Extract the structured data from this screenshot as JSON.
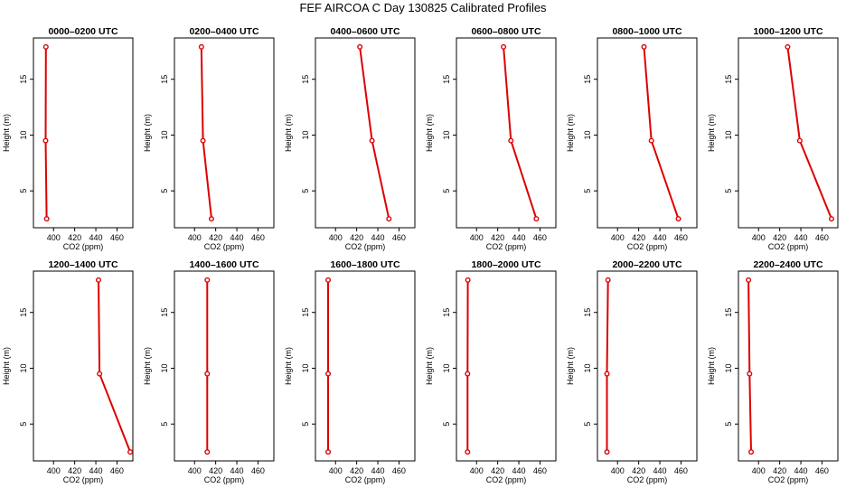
{
  "page": {
    "title": "FEF  AIRCOA C  Day 130825  Calibrated Profiles"
  },
  "chart_data": [
    {
      "type": "line",
      "title": "0000–0200 UTC",
      "xlabel": "CO2 (ppm)",
      "ylabel": "Height (m)",
      "xlim": [
        381,
        475
      ],
      "ylim": [
        1.7,
        18.7
      ],
      "x_ticks": [
        400,
        420,
        440,
        460
      ],
      "y_ticks": [
        5,
        10,
        15
      ],
      "heights": [
        2.5,
        9.5,
        17.9
      ],
      "co2": [
        393.5,
        392.5,
        392.8
      ]
    },
    {
      "type": "line",
      "title": "0200–0400 UTC",
      "xlabel": "CO2 (ppm)",
      "ylabel": "Height (m)",
      "xlim": [
        381,
        475
      ],
      "ylim": [
        1.7,
        18.7
      ],
      "x_ticks": [
        400,
        420,
        440,
        460
      ],
      "y_ticks": [
        5,
        10,
        15
      ],
      "heights": [
        2.5,
        9.5,
        17.9
      ],
      "co2": [
        416.0,
        408.0,
        406.5
      ]
    },
    {
      "type": "line",
      "title": "0400–0600 UTC",
      "xlabel": "CO2 (ppm)",
      "ylabel": "Height (m)",
      "xlim": [
        381,
        475
      ],
      "ylim": [
        1.7,
        18.7
      ],
      "x_ticks": [
        400,
        420,
        440,
        460
      ],
      "y_ticks": [
        5,
        10,
        15
      ],
      "heights": [
        2.5,
        9.5,
        17.9
      ],
      "co2": [
        450.5,
        434.5,
        423.0
      ]
    },
    {
      "type": "line",
      "title": "0600–0800 UTC",
      "xlabel": "CO2 (ppm)",
      "ylabel": "Height (m)",
      "xlim": [
        381,
        475
      ],
      "ylim": [
        1.7,
        18.7
      ],
      "x_ticks": [
        400,
        420,
        440,
        460
      ],
      "y_ticks": [
        5,
        10,
        15
      ],
      "heights": [
        2.5,
        9.5,
        17.9
      ],
      "co2": [
        456.5,
        432.5,
        425.5
      ]
    },
    {
      "type": "line",
      "title": "0800–1000 UTC",
      "xlabel": "CO2 (ppm)",
      "ylabel": "Height (m)",
      "xlim": [
        381,
        475
      ],
      "ylim": [
        1.7,
        18.7
      ],
      "x_ticks": [
        400,
        420,
        440,
        460
      ],
      "y_ticks": [
        5,
        10,
        15
      ],
      "heights": [
        2.5,
        9.5,
        17.9
      ],
      "co2": [
        457.5,
        432.0,
        425.0
      ]
    },
    {
      "type": "line",
      "title": "1000–1200 UTC",
      "xlabel": "CO2 (ppm)",
      "ylabel": "Height (m)",
      "xlim": [
        381,
        475
      ],
      "ylim": [
        1.7,
        18.7
      ],
      "x_ticks": [
        400,
        420,
        440,
        460
      ],
      "y_ticks": [
        5,
        10,
        15
      ],
      "heights": [
        2.5,
        9.5,
        17.9
      ],
      "co2": [
        469.0,
        439.0,
        427.5
      ]
    },
    {
      "type": "line",
      "title": "1200–1400 UTC",
      "xlabel": "CO2 (ppm)",
      "ylabel": "Height (m)",
      "xlim": [
        381,
        475
      ],
      "ylim": [
        1.7,
        18.7
      ],
      "x_ticks": [
        400,
        420,
        440,
        460
      ],
      "y_ticks": [
        5,
        10,
        15
      ],
      "heights": [
        2.5,
        9.5,
        17.9
      ],
      "co2": [
        472.5,
        443.5,
        442.5
      ]
    },
    {
      "type": "line",
      "title": "1400–1600 UTC",
      "xlabel": "CO2 (ppm)",
      "ylabel": "Height (m)",
      "xlim": [
        381,
        475
      ],
      "ylim": [
        1.7,
        18.7
      ],
      "x_ticks": [
        400,
        420,
        440,
        460
      ],
      "y_ticks": [
        5,
        10,
        15
      ],
      "heights": [
        2.5,
        9.5,
        17.9
      ],
      "co2": [
        412.0,
        412.0,
        412.0
      ]
    },
    {
      "type": "line",
      "title": "1600–1800 UTC",
      "xlabel": "CO2 (ppm)",
      "ylabel": "Height (m)",
      "xlim": [
        381,
        475
      ],
      "ylim": [
        1.7,
        18.7
      ],
      "x_ticks": [
        400,
        420,
        440,
        460
      ],
      "y_ticks": [
        5,
        10,
        15
      ],
      "heights": [
        2.5,
        9.5,
        17.9
      ],
      "co2": [
        393.0,
        393.0,
        393.0
      ]
    },
    {
      "type": "line",
      "title": "1800–2000 UTC",
      "xlabel": "CO2 (ppm)",
      "ylabel": "Height (m)",
      "xlim": [
        381,
        475
      ],
      "ylim": [
        1.7,
        18.7
      ],
      "x_ticks": [
        400,
        420,
        440,
        460
      ],
      "y_ticks": [
        5,
        10,
        15
      ],
      "heights": [
        2.5,
        9.5,
        17.9
      ],
      "co2": [
        391.5,
        391.5,
        391.8
      ]
    },
    {
      "type": "line",
      "title": "2000–2200 UTC",
      "xlabel": "CO2 (ppm)",
      "ylabel": "Height (m)",
      "xlim": [
        381,
        475
      ],
      "ylim": [
        1.7,
        18.7
      ],
      "x_ticks": [
        400,
        420,
        440,
        460
      ],
      "y_ticks": [
        5,
        10,
        15
      ],
      "heights": [
        2.5,
        9.5,
        17.9
      ],
      "co2": [
        390.0,
        390.0,
        391.0
      ]
    },
    {
      "type": "line",
      "title": "2200–2400 UTC",
      "xlabel": "CO2 (ppm)",
      "ylabel": "Height (m)",
      "xlim": [
        381,
        475
      ],
      "ylim": [
        1.7,
        18.7
      ],
      "x_ticks": [
        400,
        420,
        440,
        460
      ],
      "y_ticks": [
        5,
        10,
        15
      ],
      "heights": [
        2.5,
        9.5,
        17.9
      ],
      "co2": [
        393.0,
        391.5,
        390.5
      ]
    }
  ]
}
